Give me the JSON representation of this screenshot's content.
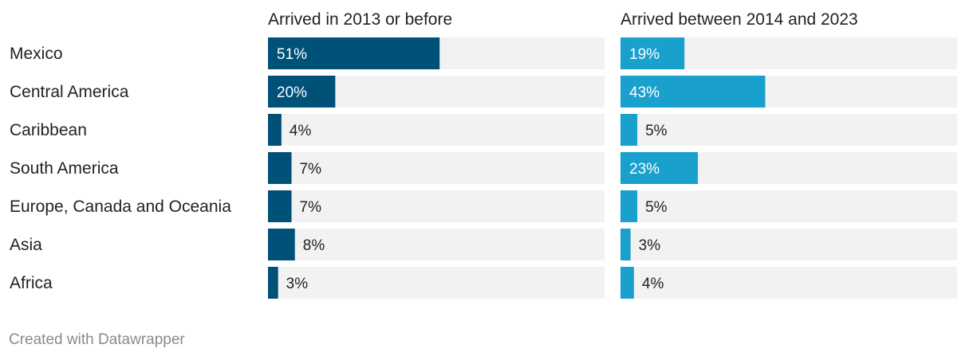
{
  "chart_data": {
    "type": "bar",
    "orientation": "horizontal",
    "categories": [
      "Mexico",
      "Central America",
      "Caribbean",
      "South America",
      "Europe, Canada and Oceania",
      "Asia",
      "Africa"
    ],
    "series": [
      {
        "name": "Arrived in 2013 or before",
        "values": [
          51,
          20,
          4,
          7,
          7,
          8,
          3
        ],
        "labels": [
          "51%",
          "20%",
          "4%",
          "7%",
          "7%",
          "8%",
          "3%"
        ],
        "color": "#005178"
      },
      {
        "name": "Arrived between 2014 and 2023",
        "values": [
          19,
          43,
          5,
          23,
          5,
          3,
          4
        ],
        "labels": [
          "19%",
          "43%",
          "5%",
          "23%",
          "5%",
          "3%",
          "4%"
        ],
        "color": "#1aa0cd"
      }
    ],
    "xlim": [
      0,
      100
    ],
    "track_color": "#f2f2f2",
    "layout": "small-multiples"
  },
  "footer": "Created with Datawrapper"
}
